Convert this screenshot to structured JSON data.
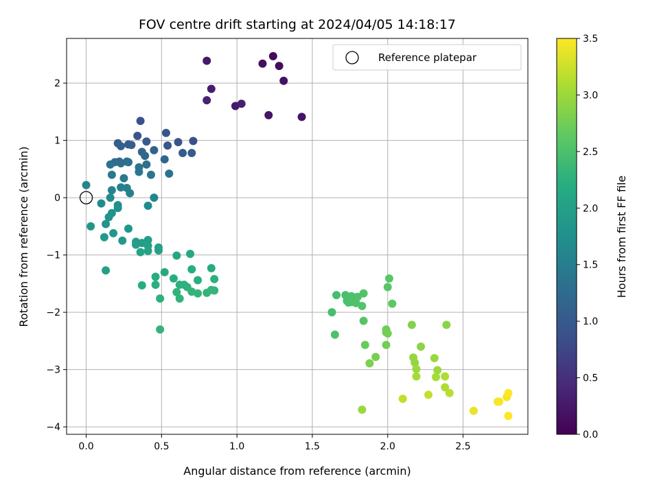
{
  "chart_data": {
    "type": "scatter",
    "title": "FOV centre drift starting at 2024/04/05 14:18:17",
    "xlabel": "Angular distance from reference (arcmin)",
    "ylabel": "Rotation from reference (arcmin)",
    "xlim": [
      -0.13,
      2.93
    ],
    "ylim": [
      -4.13,
      2.78
    ],
    "x_ticks": [
      0.0,
      0.5,
      1.0,
      1.5,
      2.0,
      2.5
    ],
    "x_tick_labels": [
      "0.0",
      "0.5",
      "1.0",
      "1.5",
      "2.0",
      "2.5"
    ],
    "y_ticks": [
      -4,
      -3,
      -2,
      -1,
      0,
      1,
      2
    ],
    "y_tick_labels": [
      "−4",
      "−3",
      "−2",
      "−1",
      "0",
      "1",
      "2"
    ],
    "grid": true,
    "legend": {
      "position": "top-right",
      "entries": [
        "Reference platepar"
      ]
    },
    "colorbar": {
      "label": "Hours from first FF file",
      "colormap": "viridis",
      "range": [
        0.0,
        3.5
      ],
      "ticks": [
        0.0,
        0.5,
        1.0,
        1.5,
        2.0,
        2.5,
        3.0,
        3.5
      ],
      "tick_labels": [
        "0.0",
        "0.5",
        "1.0",
        "1.5",
        "2.0",
        "2.5",
        "3.0",
        "3.5"
      ]
    },
    "reference_point": {
      "name": "Reference platepar",
      "x": 0.0,
      "y": 0.0
    },
    "series": [
      {
        "points": [
          [
            0.8,
            2.39,
            0.25
          ],
          [
            1.17,
            2.34,
            0.15
          ],
          [
            1.24,
            2.47,
            0.1
          ],
          [
            1.28,
            2.3,
            0.12
          ],
          [
            1.31,
            2.04,
            0.18
          ],
          [
            0.83,
            1.9,
            0.3
          ],
          [
            0.8,
            1.7,
            0.35
          ],
          [
            0.99,
            1.6,
            0.28
          ],
          [
            1.03,
            1.64,
            0.32
          ],
          [
            1.21,
            1.44,
            0.22
          ],
          [
            1.43,
            1.41,
            0.2
          ],
          [
            0.36,
            1.34,
            0.9
          ],
          [
            0.53,
            1.13,
            0.95
          ],
          [
            0.34,
            1.08,
            0.92
          ],
          [
            0.4,
            0.98,
            1.0
          ],
          [
            0.21,
            0.95,
            1.05
          ],
          [
            0.28,
            0.93,
            1.02
          ],
          [
            0.3,
            0.92,
            1.08
          ],
          [
            0.23,
            0.9,
            1.1
          ],
          [
            0.54,
            0.91,
            0.98
          ],
          [
            0.61,
            0.97,
            0.93
          ],
          [
            0.71,
            0.99,
            0.88
          ],
          [
            0.37,
            0.8,
            1.15
          ],
          [
            0.45,
            0.83,
            1.12
          ],
          [
            0.39,
            0.73,
            1.2
          ],
          [
            0.64,
            0.78,
            1.0
          ],
          [
            0.7,
            0.78,
            1.02
          ],
          [
            0.52,
            0.67,
            1.18
          ],
          [
            0.22,
            0.63,
            1.25
          ],
          [
            0.19,
            0.62,
            1.28
          ],
          [
            0.27,
            0.63,
            1.22
          ],
          [
            0.28,
            0.62,
            1.3
          ],
          [
            0.16,
            0.58,
            1.35
          ],
          [
            0.23,
            0.6,
            1.27
          ],
          [
            0.4,
            0.58,
            1.33
          ],
          [
            0.35,
            0.53,
            1.38
          ],
          [
            0.35,
            0.45,
            1.4
          ],
          [
            0.17,
            0.4,
            1.45
          ],
          [
            0.25,
            0.34,
            1.45
          ],
          [
            0.43,
            0.4,
            1.4
          ],
          [
            0.55,
            0.42,
            1.35
          ],
          [
            0.23,
            0.18,
            1.55
          ],
          [
            0.27,
            0.17,
            1.55
          ],
          [
            0.17,
            0.13,
            1.58
          ],
          [
            0.29,
            0.08,
            1.55
          ],
          [
            0.0,
            0.22,
            1.6
          ],
          [
            0.45,
            0.0,
            1.62
          ],
          [
            0.16,
            0.0,
            1.68
          ],
          [
            0.1,
            -0.1,
            1.7
          ],
          [
            0.21,
            -0.13,
            1.72
          ],
          [
            0.41,
            -0.14,
            1.7
          ],
          [
            0.21,
            -0.18,
            1.75
          ],
          [
            0.17,
            -0.27,
            1.78
          ],
          [
            0.15,
            -0.34,
            1.8
          ],
          [
            0.13,
            -0.46,
            1.82
          ],
          [
            0.03,
            -0.5,
            1.85
          ],
          [
            0.28,
            -0.54,
            1.85
          ],
          [
            0.18,
            -0.62,
            1.88
          ],
          [
            0.12,
            -0.69,
            1.9
          ],
          [
            0.24,
            -0.75,
            1.9
          ],
          [
            0.33,
            -0.77,
            1.95
          ],
          [
            0.41,
            -0.74,
            1.96
          ],
          [
            0.37,
            -0.79,
            1.97
          ],
          [
            0.33,
            -0.82,
            1.98
          ],
          [
            0.41,
            -0.84,
            2.0
          ],
          [
            0.48,
            -0.87,
            2.02
          ],
          [
            0.36,
            -0.95,
            2.05
          ],
          [
            0.41,
            -0.93,
            2.03
          ],
          [
            0.48,
            -0.92,
            2.04
          ],
          [
            0.6,
            -1.01,
            2.1
          ],
          [
            0.69,
            -0.98,
            2.12
          ],
          [
            0.13,
            -1.27,
            2.0
          ],
          [
            0.7,
            -1.25,
            2.2
          ],
          [
            0.83,
            -1.23,
            2.18
          ],
          [
            0.52,
            -1.3,
            2.15
          ],
          [
            0.46,
            -1.38,
            2.18
          ],
          [
            0.58,
            -1.41,
            2.2
          ],
          [
            0.74,
            -1.44,
            2.22
          ],
          [
            0.85,
            -1.42,
            2.25
          ],
          [
            0.46,
            -1.52,
            2.22
          ],
          [
            0.62,
            -1.52,
            2.24
          ],
          [
            0.65,
            -1.52,
            2.26
          ],
          [
            0.37,
            -1.53,
            2.2
          ],
          [
            0.67,
            -1.56,
            2.27
          ],
          [
            0.6,
            -1.65,
            2.28
          ],
          [
            0.7,
            -1.64,
            2.3
          ],
          [
            0.74,
            -1.67,
            2.3
          ],
          [
            0.8,
            -1.66,
            2.31
          ],
          [
            0.85,
            -1.62,
            2.3
          ],
          [
            0.83,
            -1.61,
            2.32
          ],
          [
            0.62,
            -1.76,
            2.3
          ],
          [
            0.49,
            -1.76,
            2.25
          ],
          [
            0.49,
            -2.3,
            2.3
          ],
          [
            2.01,
            -1.41,
            2.6
          ],
          [
            2.0,
            -1.56,
            2.6
          ],
          [
            1.84,
            -1.67,
            2.55
          ],
          [
            1.66,
            -1.7,
            2.45
          ],
          [
            1.72,
            -1.7,
            2.48
          ],
          [
            1.76,
            -1.72,
            2.5
          ],
          [
            1.8,
            -1.73,
            2.52
          ],
          [
            1.73,
            -1.8,
            2.48
          ],
          [
            1.76,
            -1.82,
            2.52
          ],
          [
            1.74,
            -1.83,
            2.5
          ],
          [
            1.79,
            -1.84,
            2.52
          ],
          [
            1.83,
            -1.89,
            2.55
          ],
          [
            2.03,
            -1.85,
            2.62
          ],
          [
            1.63,
            -2.0,
            2.45
          ],
          [
            1.84,
            -2.15,
            2.58
          ],
          [
            1.65,
            -2.39,
            2.52
          ],
          [
            1.99,
            -2.3,
            2.72
          ],
          [
            1.99,
            -2.35,
            2.74
          ],
          [
            2.0,
            -2.37,
            2.76
          ],
          [
            2.16,
            -2.22,
            2.85
          ],
          [
            2.39,
            -2.22,
            2.9
          ],
          [
            1.85,
            -2.57,
            2.7
          ],
          [
            1.99,
            -2.57,
            2.75
          ],
          [
            2.22,
            -2.6,
            2.9
          ],
          [
            1.92,
            -2.78,
            2.78
          ],
          [
            1.88,
            -2.89,
            2.8
          ],
          [
            2.17,
            -2.79,
            2.95
          ],
          [
            2.18,
            -2.88,
            2.95
          ],
          [
            2.31,
            -2.8,
            2.98
          ],
          [
            2.19,
            -2.99,
            3.0
          ],
          [
            2.33,
            -3.01,
            3.0
          ],
          [
            2.19,
            -3.12,
            3.05
          ],
          [
            2.32,
            -3.13,
            3.05
          ],
          [
            2.38,
            -3.12,
            3.1
          ],
          [
            2.38,
            -3.31,
            3.1
          ],
          [
            2.41,
            -3.41,
            3.15
          ],
          [
            2.27,
            -3.44,
            3.2
          ],
          [
            2.1,
            -3.51,
            3.2
          ],
          [
            1.83,
            -3.7,
            3.0
          ],
          [
            2.57,
            -3.72,
            3.4
          ],
          [
            2.73,
            -3.56,
            3.45
          ],
          [
            2.74,
            -3.56,
            3.48
          ],
          [
            2.79,
            -3.48,
            3.45
          ],
          [
            2.8,
            -3.41,
            3.5
          ],
          [
            2.8,
            -3.81,
            3.5
          ]
        ]
      }
    ]
  }
}
